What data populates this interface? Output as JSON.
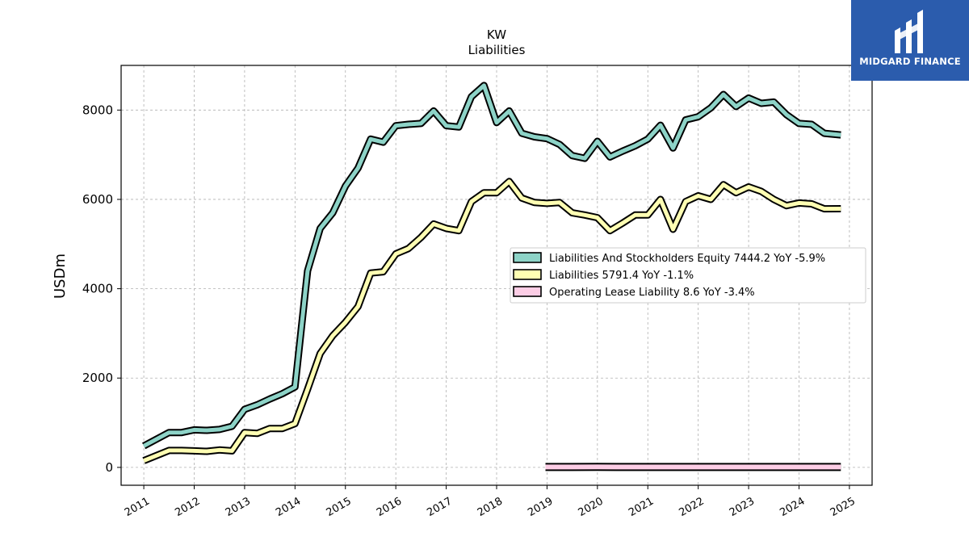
{
  "brand": {
    "name": "MIDGARD FINANCE",
    "bg_color": "#2b5cad"
  },
  "chart_data": {
    "type": "line",
    "title": "KW",
    "subtitle": "Liabilities",
    "ylabel": "USDm",
    "xlabel": "",
    "xlim": [
      2010.55,
      2025.45
    ],
    "ylim": [
      -400,
      9000
    ],
    "x_ticks": [
      2011,
      2012,
      2013,
      2014,
      2015,
      2016,
      2017,
      2018,
      2019,
      2020,
      2021,
      2022,
      2023,
      2024,
      2025
    ],
    "y_ticks": [
      0,
      2000,
      4000,
      6000,
      8000
    ],
    "grid": true,
    "legend_position": "center-right",
    "series": [
      {
        "name": "Liabilities And Stockholders Equity",
        "legend_label": "Liabilities And Stockholders Equity  7444.2 YoY -5.9%",
        "color": "#8dd3c7",
        "x": [
          2011.0,
          2011.5,
          2011.75,
          2012.0,
          2012.25,
          2012.5,
          2012.75,
          2013.0,
          2013.25,
          2013.5,
          2013.75,
          2014.0,
          2014.25,
          2014.5,
          2014.75,
          2015.0,
          2015.25,
          2015.5,
          2015.75,
          2016.0,
          2016.25,
          2016.5,
          2016.75,
          2017.0,
          2017.25,
          2017.5,
          2017.75,
          2018.0,
          2018.25,
          2018.5,
          2018.75,
          2019.0,
          2019.25,
          2019.5,
          2019.75,
          2020.0,
          2020.25,
          2020.5,
          2020.75,
          2021.0,
          2021.25,
          2021.5,
          2021.75,
          2022.0,
          2022.25,
          2022.5,
          2022.75,
          2023.0,
          2023.25,
          2023.5,
          2023.75,
          2024.0,
          2024.25,
          2024.5,
          2024.83
        ],
        "y": [
          480,
          780,
          780,
          840,
          830,
          850,
          920,
          1300,
          1400,
          1530,
          1650,
          1800,
          4400,
          5350,
          5700,
          6300,
          6700,
          7350,
          7280,
          7650,
          7680,
          7700,
          7980,
          7650,
          7620,
          8300,
          8550,
          7720,
          7980,
          7480,
          7400,
          7360,
          7230,
          6980,
          6920,
          7300,
          6950,
          7080,
          7200,
          7350,
          7660,
          7150,
          7780,
          7850,
          8050,
          8350,
          8080,
          8270,
          8150,
          8180,
          7900,
          7700,
          7680,
          7480,
          7444.2
        ]
      },
      {
        "name": "Liabilities",
        "legend_label": "Liabilities  5791.4 YoY -1.1%",
        "color": "#ffffb3",
        "x": [
          2011.0,
          2011.5,
          2011.75,
          2012.0,
          2012.25,
          2012.5,
          2012.75,
          2013.0,
          2013.25,
          2013.5,
          2013.75,
          2014.0,
          2014.25,
          2014.5,
          2014.75,
          2015.0,
          2015.25,
          2015.5,
          2015.75,
          2016.0,
          2016.25,
          2016.5,
          2016.75,
          2017.0,
          2017.25,
          2017.5,
          2017.75,
          2018.0,
          2018.25,
          2018.5,
          2018.75,
          2019.0,
          2019.25,
          2019.5,
          2019.75,
          2020.0,
          2020.25,
          2020.5,
          2020.75,
          2021.0,
          2021.25,
          2021.5,
          2021.75,
          2022.0,
          2022.25,
          2022.5,
          2022.75,
          2023.0,
          2023.25,
          2023.5,
          2023.75,
          2024.0,
          2024.25,
          2024.5,
          2024.83
        ],
        "y": [
          150,
          380,
          380,
          370,
          360,
          390,
          370,
          780,
          760,
          870,
          870,
          980,
          1750,
          2550,
          2950,
          3250,
          3600,
          4350,
          4380,
          4780,
          4900,
          5150,
          5450,
          5350,
          5300,
          5950,
          6150,
          6150,
          6400,
          6030,
          5930,
          5910,
          5930,
          5700,
          5650,
          5590,
          5300,
          5470,
          5650,
          5650,
          6000,
          5330,
          5950,
          6080,
          6000,
          6330,
          6150,
          6280,
          6180,
          6000,
          5860,
          5920,
          5900,
          5790,
          5791.4
        ]
      },
      {
        "name": "Operating Lease Liability",
        "legend_label": "Operating Lease Liability  8.6 YoY -3.4%",
        "color": "#fccde5",
        "x": [
          2018.97,
          2019.5,
          2020.0,
          2020.5,
          2021.0,
          2021.5,
          2022.0,
          2022.5,
          2023.0,
          2023.5,
          2024.0,
          2024.5,
          2024.83
        ],
        "y": [
          9,
          9,
          9.5,
          9.2,
          9.1,
          9,
          8.9,
          8.7,
          8.9,
          9,
          8.8,
          8.7,
          8.6
        ]
      }
    ]
  }
}
